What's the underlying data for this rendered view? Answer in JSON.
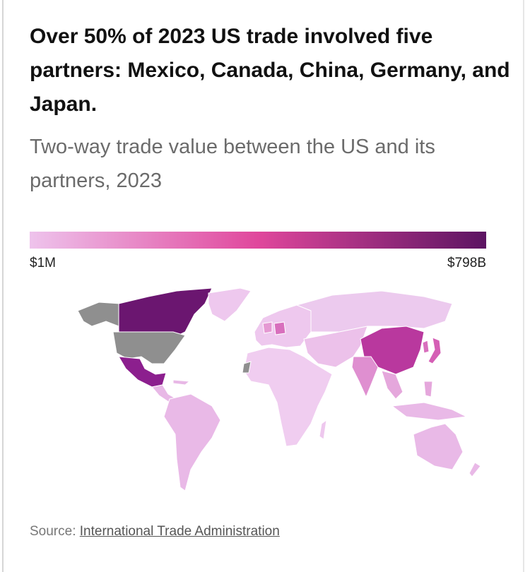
{
  "header": {
    "title": "Over 50% of 2023 US trade involved five partners: Mexico, Canada, China, Germany, and Japan.",
    "subtitle": "Two-way trade value between the US and its partners, 2023"
  },
  "legend": {
    "min_label": "$1M",
    "max_label": "$798B",
    "colors": [
      "#eec3ec",
      "#e0479c",
      "#5c1462"
    ]
  },
  "source": {
    "prefix": "Source:",
    "link": "International Trade Administration"
  }
}
